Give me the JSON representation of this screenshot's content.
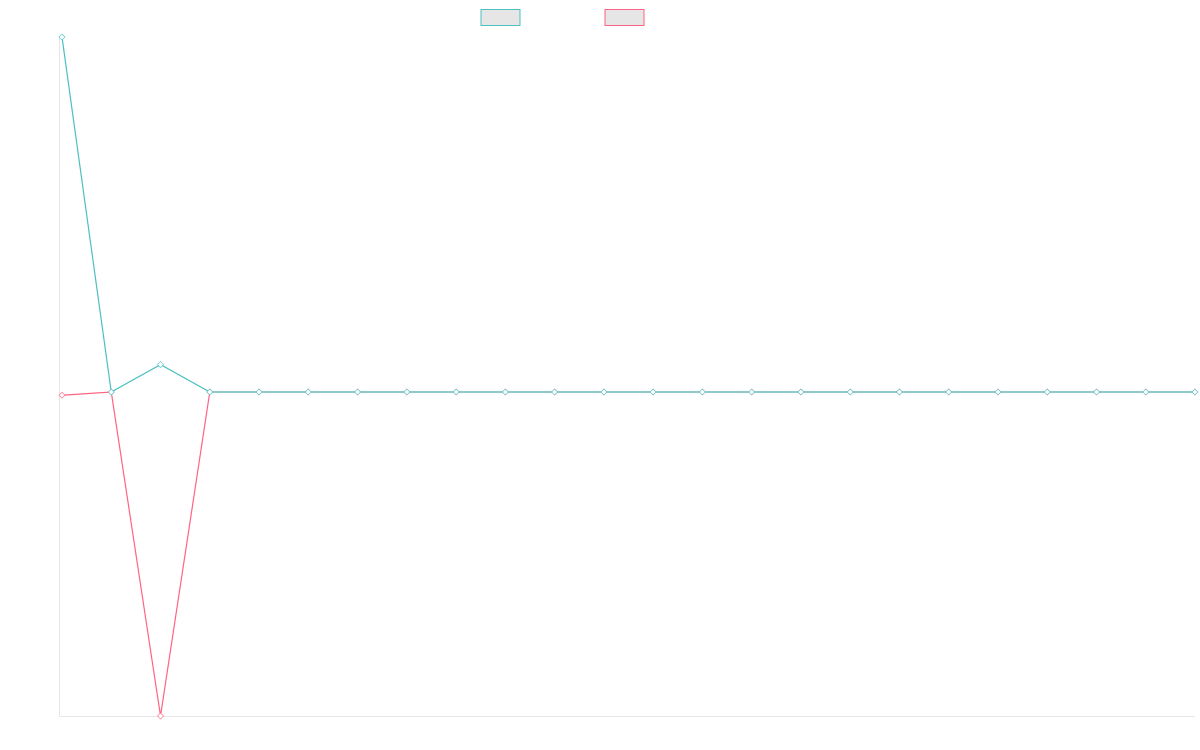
{
  "colors": {
    "series_a": "#4bc0c0",
    "series_b": "#ff6384",
    "legend_fill": "#e6e6e6",
    "axis": "#e6e6e6"
  },
  "chart_data": {
    "type": "line",
    "title": "",
    "xlabel": "",
    "ylabel": "",
    "grid": false,
    "legend": "top-center",
    "x": [
      0,
      1,
      2,
      3,
      4,
      5,
      6,
      7,
      8,
      9,
      10,
      11,
      12,
      13,
      14,
      15,
      16,
      17,
      18,
      19,
      20,
      21,
      22,
      23
    ],
    "ylim": [
      -1.0,
      1.1
    ],
    "series": [
      {
        "color_key": "series_a",
        "values": [
          1.1,
          0.0,
          0.085,
          0.0,
          0.0,
          0.0,
          0.0,
          0.0,
          0.0,
          0.0,
          0.0,
          0.0,
          0.0,
          0.0,
          0.0,
          0.0,
          0.0,
          0.0,
          0.0,
          0.0,
          0.0,
          0.0,
          0.0,
          0.0
        ]
      },
      {
        "color_key": "series_b",
        "values": [
          -0.01,
          0.0,
          -1.0,
          0.0,
          0.0,
          0.0,
          0.0,
          0.0,
          0.0,
          0.0,
          0.0,
          0.0,
          0.0,
          0.0,
          0.0,
          0.0,
          0.0,
          0.0,
          0.0,
          0.0,
          0.0,
          0.0,
          0.0,
          0.0
        ]
      }
    ]
  }
}
